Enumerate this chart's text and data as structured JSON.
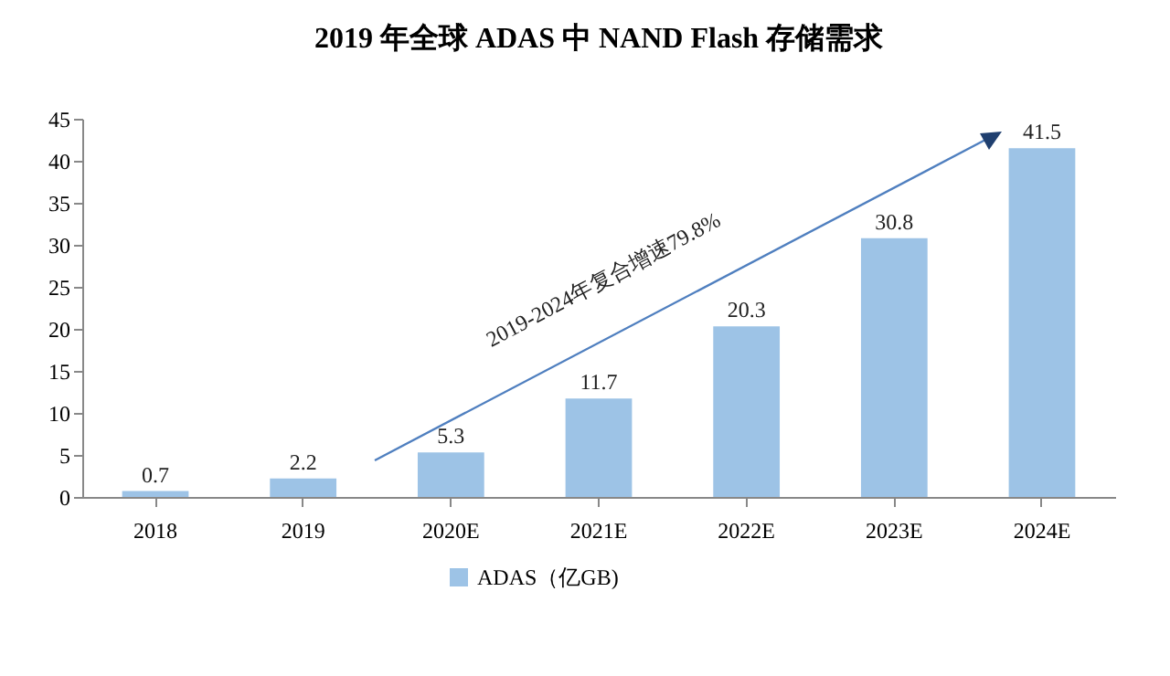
{
  "chart_data": {
    "type": "bar",
    "title": "2019 年全球 ADAS 中 NAND Flash 存储需求",
    "categories": [
      "2018",
      "2019",
      "2020E",
      "2021E",
      "2022E",
      "2023E",
      "2024E"
    ],
    "series": [
      {
        "name": "ADAS（亿GB)",
        "color": "#9dc3e6",
        "values": [
          0.7,
          2.2,
          5.3,
          11.7,
          20.3,
          30.8,
          41.5
        ]
      }
    ],
    "ylim": [
      0,
      45
    ],
    "yticks": [
      0,
      5,
      10,
      15,
      20,
      25,
      30,
      35,
      40,
      45
    ],
    "data_labels": true,
    "grid": false,
    "legend": "bottom",
    "annotations": [
      "2019-2024年复合增速79.8%"
    ]
  }
}
